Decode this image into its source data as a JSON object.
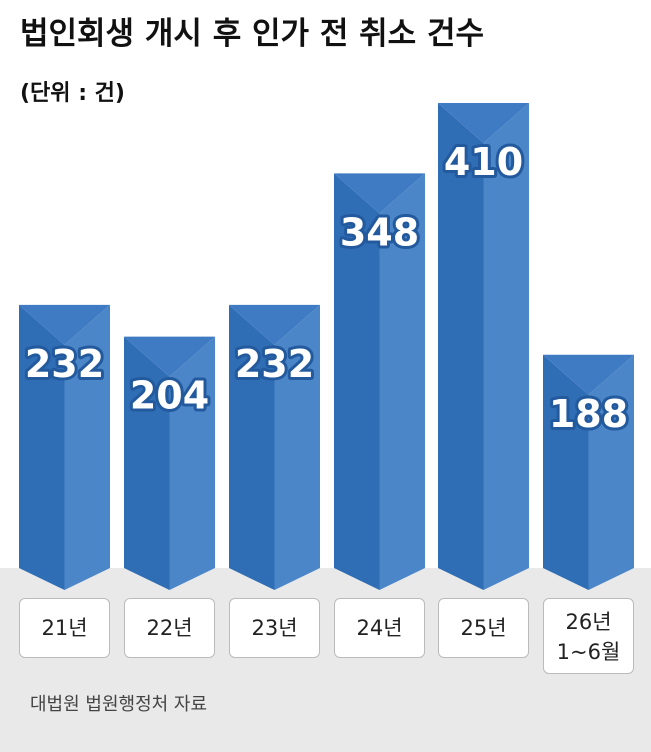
{
  "chart_data": {
    "type": "bar",
    "title": "법인회생 개시 후 인가 전 취소 건수",
    "subtitle": "(단위 : 건)",
    "categories": [
      "21년",
      "22년",
      "23년",
      "24년",
      "25년",
      "26년\n1~6월"
    ],
    "values": [
      232,
      204,
      232,
      348,
      410,
      188
    ],
    "color": "#2f6db5",
    "source": "대법원 법원행정처 자료"
  }
}
